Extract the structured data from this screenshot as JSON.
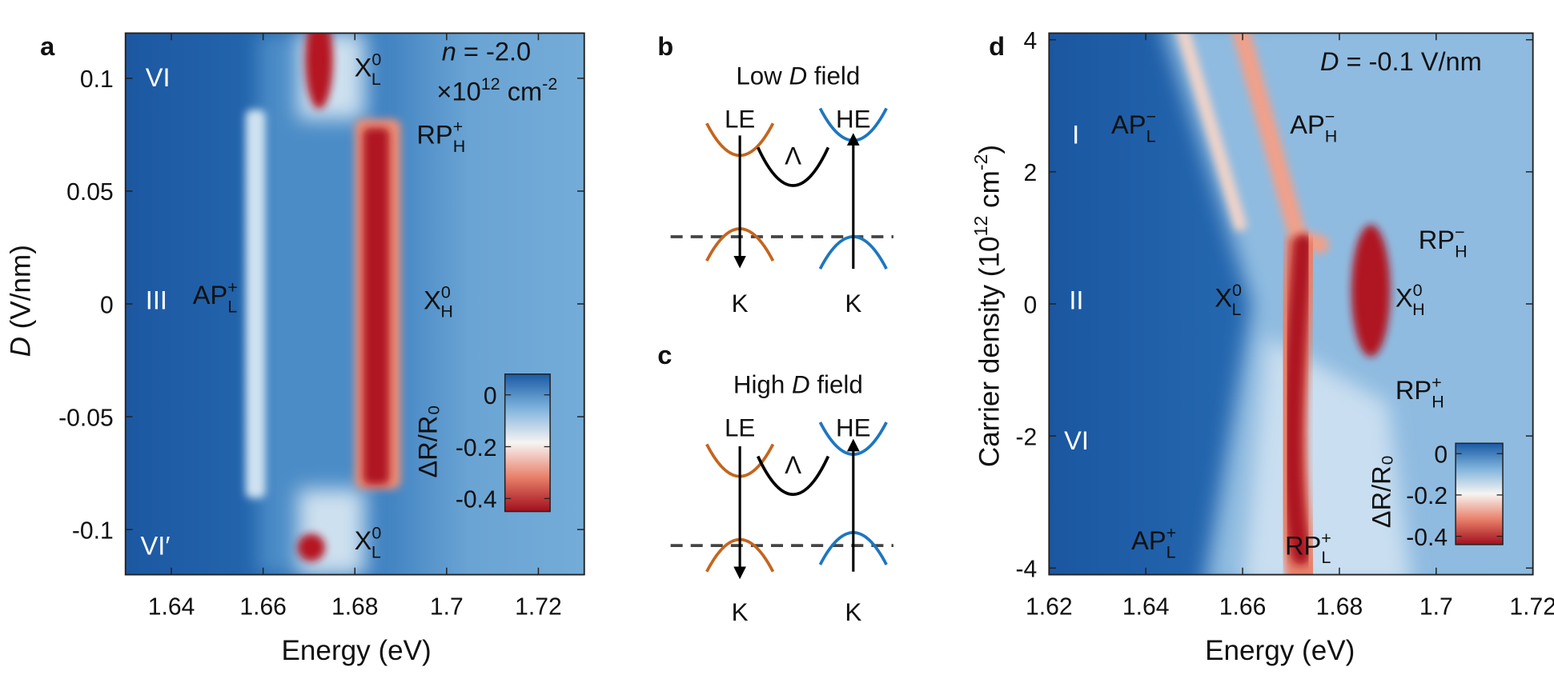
{
  "chart_data": [
    {
      "type": "heatmap",
      "panel_label": "a",
      "xlabel": [
        {
          "text": "Energy (eV)"
        }
      ],
      "ylabel": [
        {
          "italic": "D"
        },
        {
          "text": " (V/nm)"
        }
      ],
      "xlim": [
        1.63,
        1.73
      ],
      "ylim": [
        -0.12,
        0.12
      ],
      "xticks": [
        1.64,
        1.66,
        1.68,
        1.7,
        1.72
      ],
      "yticks": [
        -0.1,
        -0.05,
        0,
        0.05,
        0.1
      ],
      "annotations": [
        [
          {
            "text": "VI"
          }
        ],
        [
          {
            "text": "III"
          }
        ],
        [
          {
            "text": "VI′"
          }
        ],
        [
          {
            "text": "X"
          },
          {
            "sup": "0"
          },
          {
            "sub": "L"
          }
        ],
        [
          {
            "text": "RP"
          },
          {
            "sup": "+"
          },
          {
            "sub": "H"
          }
        ],
        [
          {
            "text": "X"
          },
          {
            "sup": "0"
          },
          {
            "sub": "H"
          }
        ],
        [
          {
            "text": "AP"
          },
          {
            "sup": "+"
          },
          {
            "sub": "L"
          }
        ],
        [
          {
            "text": "X"
          },
          {
            "sup": "0"
          },
          {
            "sub": "L"
          }
        ],
        [
          {
            "italic": "n"
          },
          {
            "text": " = -2.0"
          }
        ],
        [
          {
            "text": "×10"
          },
          {
            "sup": "12"
          },
          {
            "text": " cm"
          },
          {
            "sup": "-2"
          }
        ]
      ],
      "colorbar": {
        "label": "ΔR/R₀",
        "clim": [
          -0.45,
          0.08
        ],
        "ticks": [
          0,
          -0.2,
          -0.4
        ]
      },
      "colormap": [
        "#a10f1d",
        "#e8806a",
        "#f7f4f2",
        "#7fb3dc",
        "#1a5aa5"
      ]
    },
    {
      "type": "heatmap",
      "panel_label": "d",
      "xlabel": [
        {
          "text": "Energy (eV)"
        }
      ],
      "ylabel": [
        {
          "text": "Carrier density (10"
        },
        {
          "sup": "12"
        },
        {
          "text": " cm"
        },
        {
          "sup": "-2"
        },
        {
          "text": ")"
        }
      ],
      "xlim": [
        1.62,
        1.72
      ],
      "ylim": [
        -4.1,
        4.1
      ],
      "xticks": [
        1.62,
        1.64,
        1.66,
        1.68,
        1.7,
        1.72
      ],
      "yticks": [
        -4,
        -2,
        0,
        2,
        4
      ],
      "annotations": [
        [
          {
            "italic": "D"
          },
          {
            "text": " = -0.1 V/nm"
          }
        ],
        [
          {
            "text": "I"
          }
        ],
        [
          {
            "text": "AP"
          },
          {
            "sup": "−"
          },
          {
            "sub": "L"
          }
        ],
        [
          {
            "text": "AP"
          },
          {
            "sup": "−"
          },
          {
            "sub": "H"
          }
        ],
        [
          {
            "text": "II"
          }
        ],
        [
          {
            "text": "X"
          },
          {
            "sup": "0"
          },
          {
            "sub": "L"
          }
        ],
        [
          {
            "text": "X"
          },
          {
            "sup": "0"
          },
          {
            "sub": "H"
          }
        ],
        [
          {
            "text": "RP"
          },
          {
            "sup": "−"
          },
          {
            "sub": "H"
          }
        ],
        [
          {
            "text": "RP"
          },
          {
            "sup": "+"
          },
          {
            "sub": "H"
          }
        ],
        [
          {
            "text": "VI"
          }
        ],
        [
          {
            "text": "AP"
          },
          {
            "sup": "+"
          },
          {
            "sub": "L"
          }
        ],
        [
          {
            "text": "RP"
          },
          {
            "sup": "+"
          },
          {
            "sub": "L"
          }
        ]
      ],
      "colorbar": {
        "label": "ΔR/R₀",
        "clim": [
          -0.44,
          0.05
        ],
        "ticks": [
          0,
          -0.2,
          -0.4
        ]
      },
      "colormap": [
        "#a10f1d",
        "#e8806a",
        "#f7f4f2",
        "#7fb3dc",
        "#1a5aa5"
      ]
    }
  ],
  "diagrams": [
    {
      "panel_label": "b",
      "title": [
        {
          "text": "Low "
        },
        {
          "italic": "D"
        },
        {
          "text": " field"
        }
      ],
      "left": "LE",
      "right": "HE",
      "middle": "Λ",
      "left_valley": "K",
      "right_valley": "K"
    },
    {
      "panel_label": "c",
      "title": [
        {
          "text": "High "
        },
        {
          "italic": "D"
        },
        {
          "text": " field"
        }
      ],
      "left": "LE",
      "right": "HE",
      "middle": "Λ",
      "left_valley": "K",
      "right_valley": "K"
    }
  ]
}
